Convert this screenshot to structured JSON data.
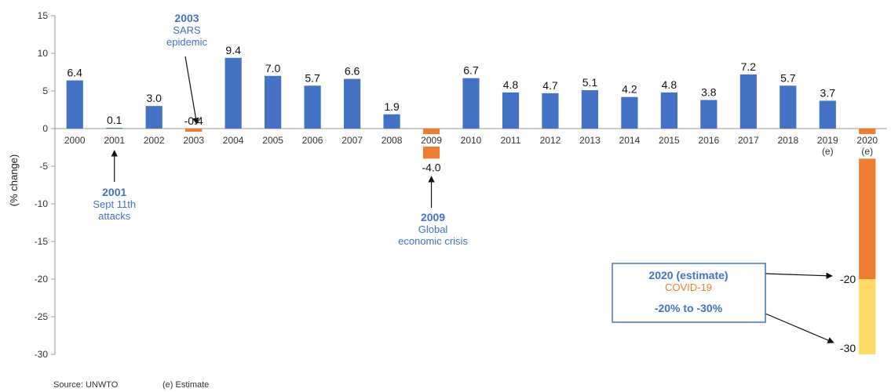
{
  "chart_data": {
    "type": "bar",
    "ylabel": "(% change)",
    "ylim": [
      -30,
      15
    ],
    "yticks": [
      15,
      10,
      5,
      0,
      -5,
      -10,
      -15,
      -20,
      -25,
      -30
    ],
    "grid": false,
    "categories": [
      "2000",
      "2001",
      "2002",
      "2003",
      "2004",
      "2005",
      "2006",
      "2007",
      "2008",
      "2009",
      "2010",
      "2011",
      "2012",
      "2013",
      "2014",
      "2015",
      "2016",
      "2017",
      "2018",
      "2019",
      "2020"
    ],
    "category_notes": [
      "",
      "",
      "",
      "",
      "",
      "",
      "",
      "",
      "",
      "",
      "",
      "",
      "",
      "",
      "",
      "",
      "",
      "",
      "",
      "(e)",
      "(e)"
    ],
    "values": [
      6.4,
      0.1,
      3.0,
      -0.4,
      9.4,
      7.0,
      5.7,
      6.6,
      1.9,
      -4.0,
      6.7,
      4.8,
      4.7,
      5.1,
      4.2,
      4.8,
      3.8,
      7.2,
      5.7,
      3.7,
      null
    ],
    "value_labels": [
      "6.4",
      "0.1",
      "3.0",
      "-0.4",
      "9.4",
      "7.0",
      "5.7",
      "6.6",
      "1.9",
      "-4.0",
      "6.7",
      "4.8",
      "4.7",
      "5.1",
      "4.2",
      "4.8",
      "3.8",
      "7.2",
      "5.7",
      "3.7",
      ""
    ],
    "estimate_2020": {
      "range": [
        -30,
        -20
      ],
      "bar_to": -20,
      "labels": [
        "-20",
        "-30"
      ]
    },
    "annotations": [
      {
        "target": "2001",
        "year": "2001",
        "text": [
          "Sept 11th",
          "attacks"
        ]
      },
      {
        "target": "2003",
        "year": "2003",
        "text": [
          "SARS",
          "epidemic"
        ]
      },
      {
        "target": "2009",
        "year": "2009",
        "text": [
          "Global",
          "economic crisis"
        ]
      }
    ],
    "callout": {
      "title": "2020 (estimate)",
      "subtitle": "COVID-19",
      "range": "-20% to -30%"
    },
    "source": "Source: UNWTO",
    "note": "(e) Estimate"
  },
  "colors": {
    "positive": "#4472c4",
    "negative": "#ed7d31",
    "estimate_upper": "#ed7d31",
    "estimate_lower": "#ffd966",
    "annotation_text": "#4472c4",
    "callout_sub": "#ed7d31",
    "axis": "#999999"
  }
}
